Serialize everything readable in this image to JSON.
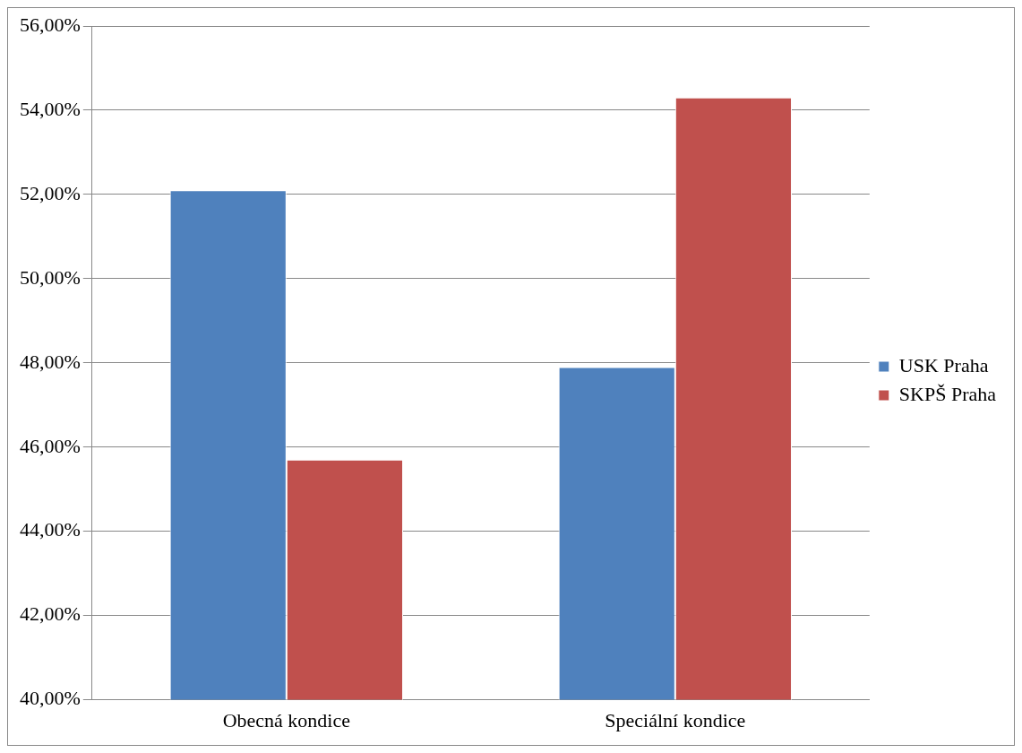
{
  "chart_data": {
    "type": "bar",
    "categories": [
      "Obecná kondice",
      "Speciální kondice"
    ],
    "series": [
      {
        "name": "USK Praha",
        "color": "#4f81bd",
        "values": [
          52.1,
          47.9
        ]
      },
      {
        "name": "SKPŠ Praha",
        "color": "#c0504d",
        "values": [
          45.7,
          54.3
        ]
      }
    ],
    "ylim": [
      40,
      56
    ],
    "yticks": [
      {
        "value": 40,
        "label": "40,00%"
      },
      {
        "value": 42,
        "label": "42,00%"
      },
      {
        "value": 44,
        "label": "44,00%"
      },
      {
        "value": 46,
        "label": "46,00%"
      },
      {
        "value": 48,
        "label": "48,00%"
      },
      {
        "value": 50,
        "label": "50,00%"
      },
      {
        "value": 52,
        "label": "52,00%"
      },
      {
        "value": 54,
        "label": "54,00%"
      },
      {
        "value": 56,
        "label": "56,00%"
      }
    ],
    "grid": "y",
    "legend": "right"
  }
}
